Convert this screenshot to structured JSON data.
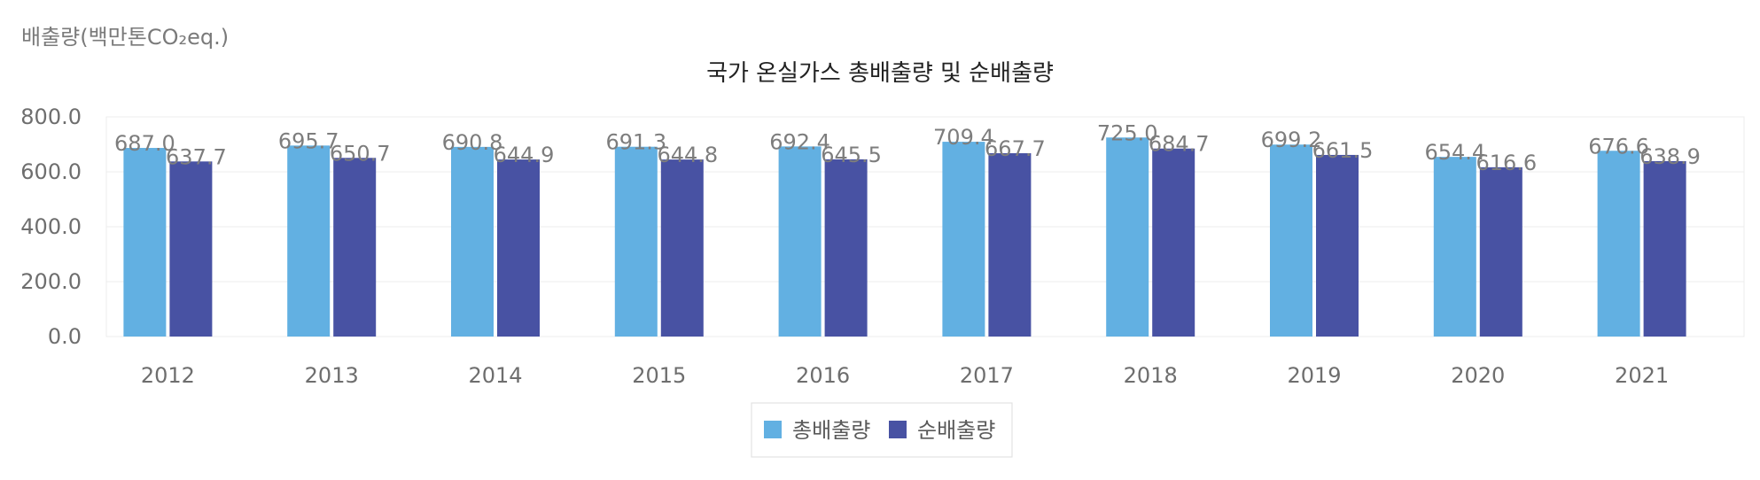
{
  "chart_data": {
    "type": "bar",
    "title": "국가 온실가스 총배출량 및 순배출량",
    "ylabel": "배출량(백만톤CO₂eq.)",
    "xlabel": "",
    "categories": [
      "2012",
      "2013",
      "2014",
      "2015",
      "2016",
      "2017",
      "2018",
      "2019",
      "2020",
      "2021"
    ],
    "series": [
      {
        "name": "총배출량",
        "color": "#62b0e2",
        "values": [
          687.0,
          695.7,
          690.8,
          691.3,
          692.4,
          709.4,
          725.0,
          699.2,
          654.4,
          676.6
        ]
      },
      {
        "name": "순배출량",
        "color": "#4852a3",
        "values": [
          637.7,
          650.7,
          644.9,
          644.8,
          645.5,
          667.7,
          684.7,
          661.5,
          616.6,
          638.9
        ]
      }
    ],
    "ylim": [
      0,
      800
    ],
    "yticks": [
      "0.0",
      "200.0",
      "400.0",
      "600.0",
      "800.0"
    ],
    "grid": true,
    "legend": "bottom-center"
  }
}
